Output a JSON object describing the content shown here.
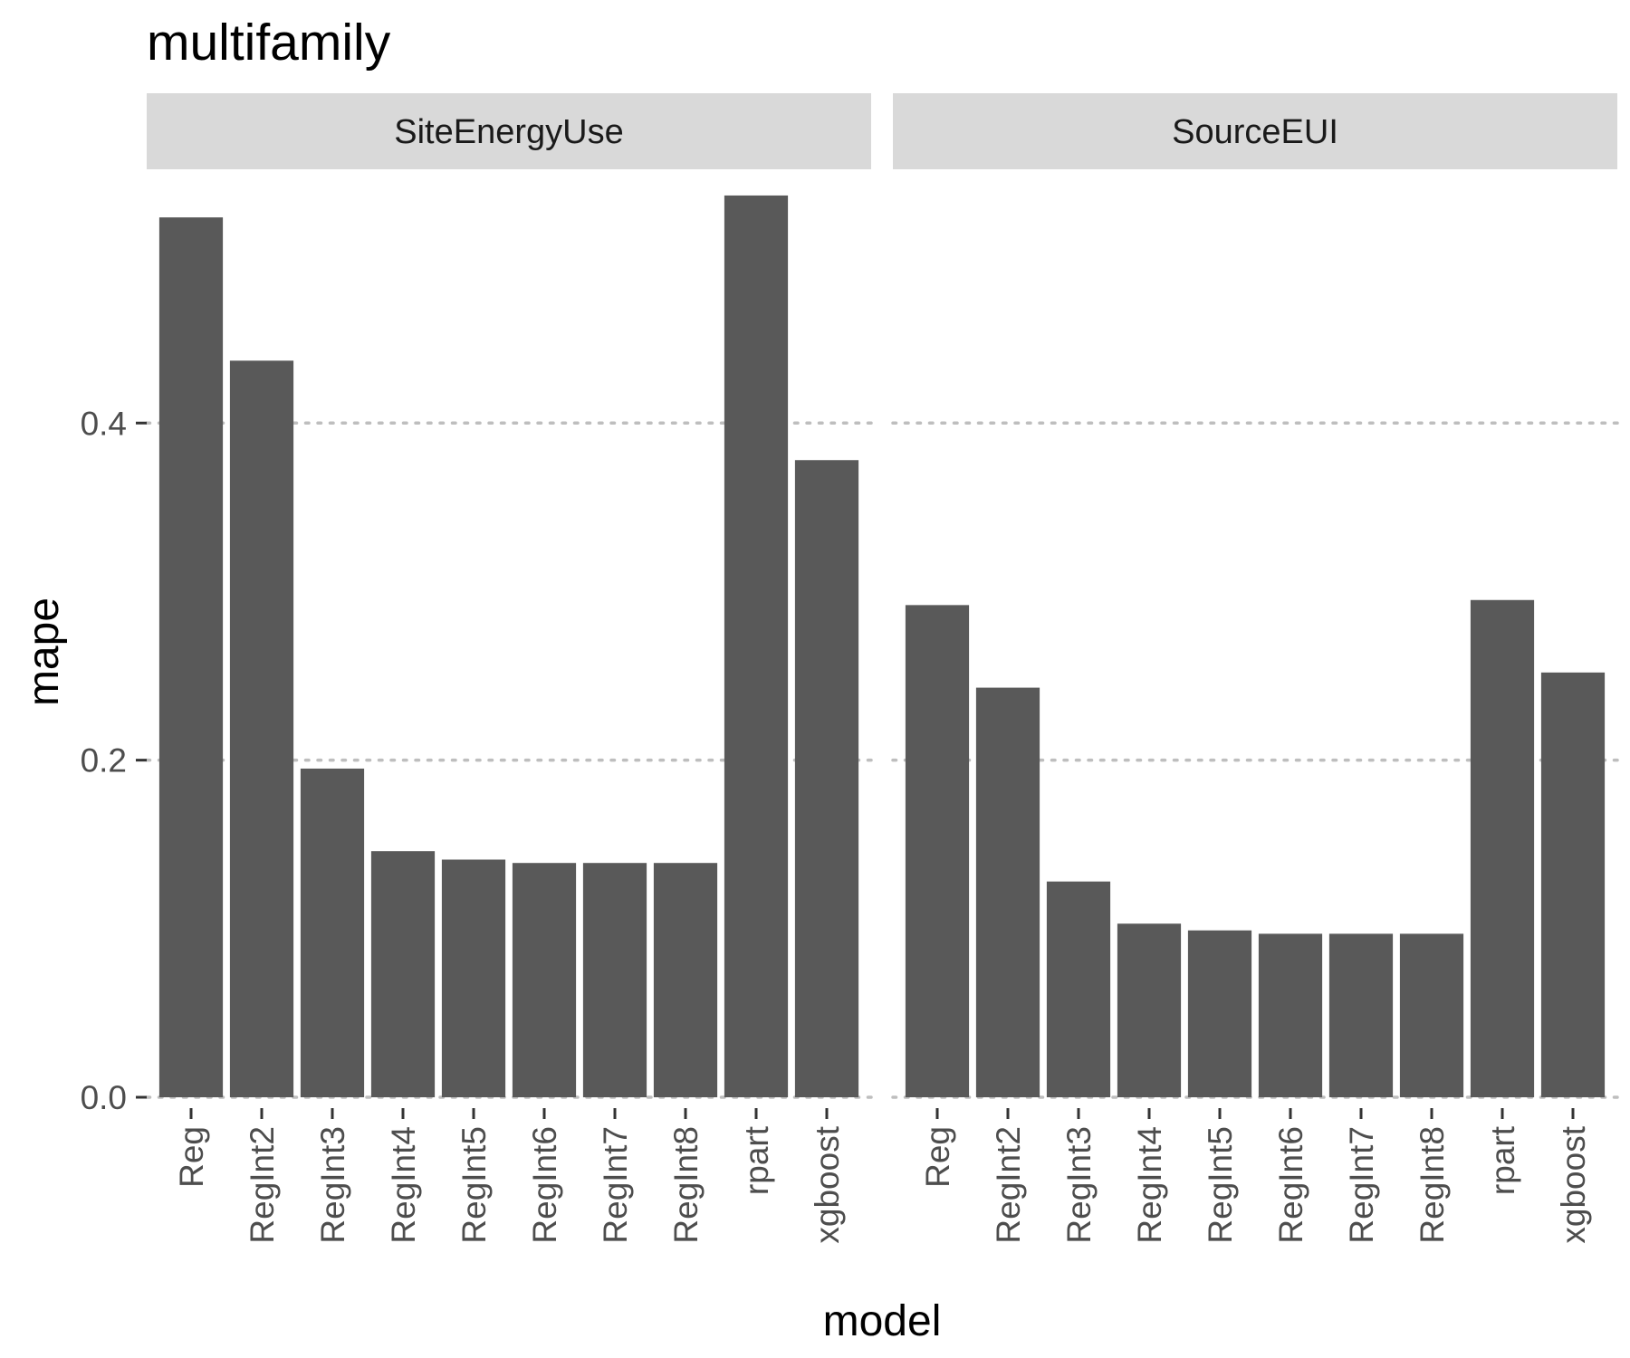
{
  "chart_data": {
    "type": "bar",
    "title": "multifamily",
    "xlabel": "model",
    "ylabel": "mape",
    "ylim": [
      0,
      0.55
    ],
    "yticks": [
      "0.0",
      "0.2",
      "0.4"
    ],
    "ytick_values": [
      0.0,
      0.2,
      0.4
    ],
    "grid": "horizontal dotted",
    "bar_color": "#595959",
    "grid_color": "#bebebe",
    "strip_color": "#d9d9d9",
    "categories": [
      "Reg",
      "RegInt2",
      "RegInt3",
      "RegInt4",
      "RegInt5",
      "RegInt6",
      "RegInt7",
      "RegInt8",
      "rpart",
      "xgboost"
    ],
    "facets": [
      {
        "label": "SiteEnergyUse",
        "values": [
          0.522,
          0.437,
          0.195,
          0.146,
          0.141,
          0.139,
          0.139,
          0.139,
          0.535,
          0.378
        ]
      },
      {
        "label": "SourceEUI",
        "values": [
          0.292,
          0.243,
          0.128,
          0.103,
          0.099,
          0.097,
          0.097,
          0.097,
          0.295,
          0.252
        ]
      }
    ]
  }
}
